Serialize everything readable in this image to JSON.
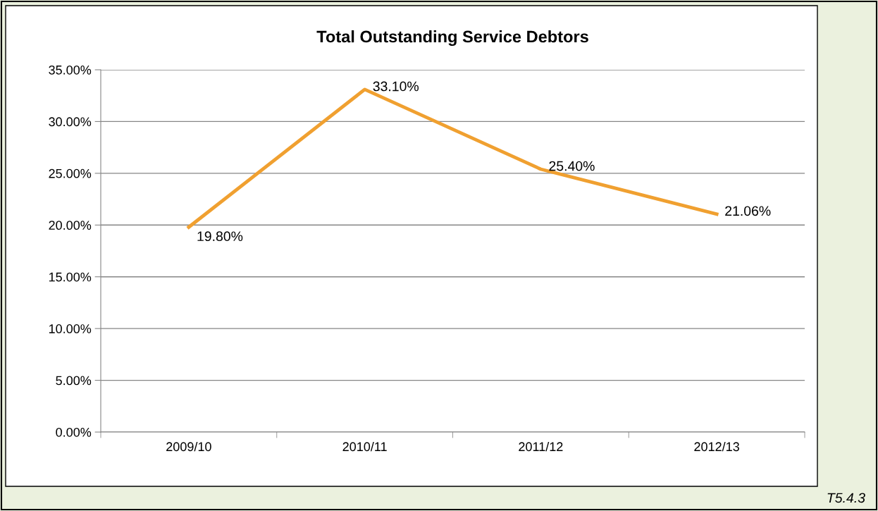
{
  "chart_data": {
    "type": "line",
    "title": "Total Outstanding Service Debtors",
    "categories": [
      "2009/10",
      "2010/11",
      "2011/12",
      "2012/13"
    ],
    "series": [
      {
        "color": "#f0a030",
        "values": [
          19.8,
          33.1,
          25.4,
          21.06
        ],
        "value_labels": [
          "19.80%",
          "33.10%",
          "25.40%",
          "21.06%"
        ]
      }
    ],
    "ylim": [
      0,
      35
    ],
    "yticks": [
      {
        "value": 0,
        "label": "0.00%"
      },
      {
        "value": 5,
        "label": "5.00%"
      },
      {
        "value": 10,
        "label": "10.00%"
      },
      {
        "value": 15,
        "label": "15.00%"
      },
      {
        "value": 20,
        "label": "20.00%"
      },
      {
        "value": 25,
        "label": "25.00%"
      },
      {
        "value": 30,
        "label": "30.00%"
      },
      {
        "value": 35,
        "label": "35.00%"
      }
    ],
    "grid": "y",
    "marker": "none",
    "line_style": "solid",
    "annotations": [
      "T5.4.3"
    ]
  }
}
